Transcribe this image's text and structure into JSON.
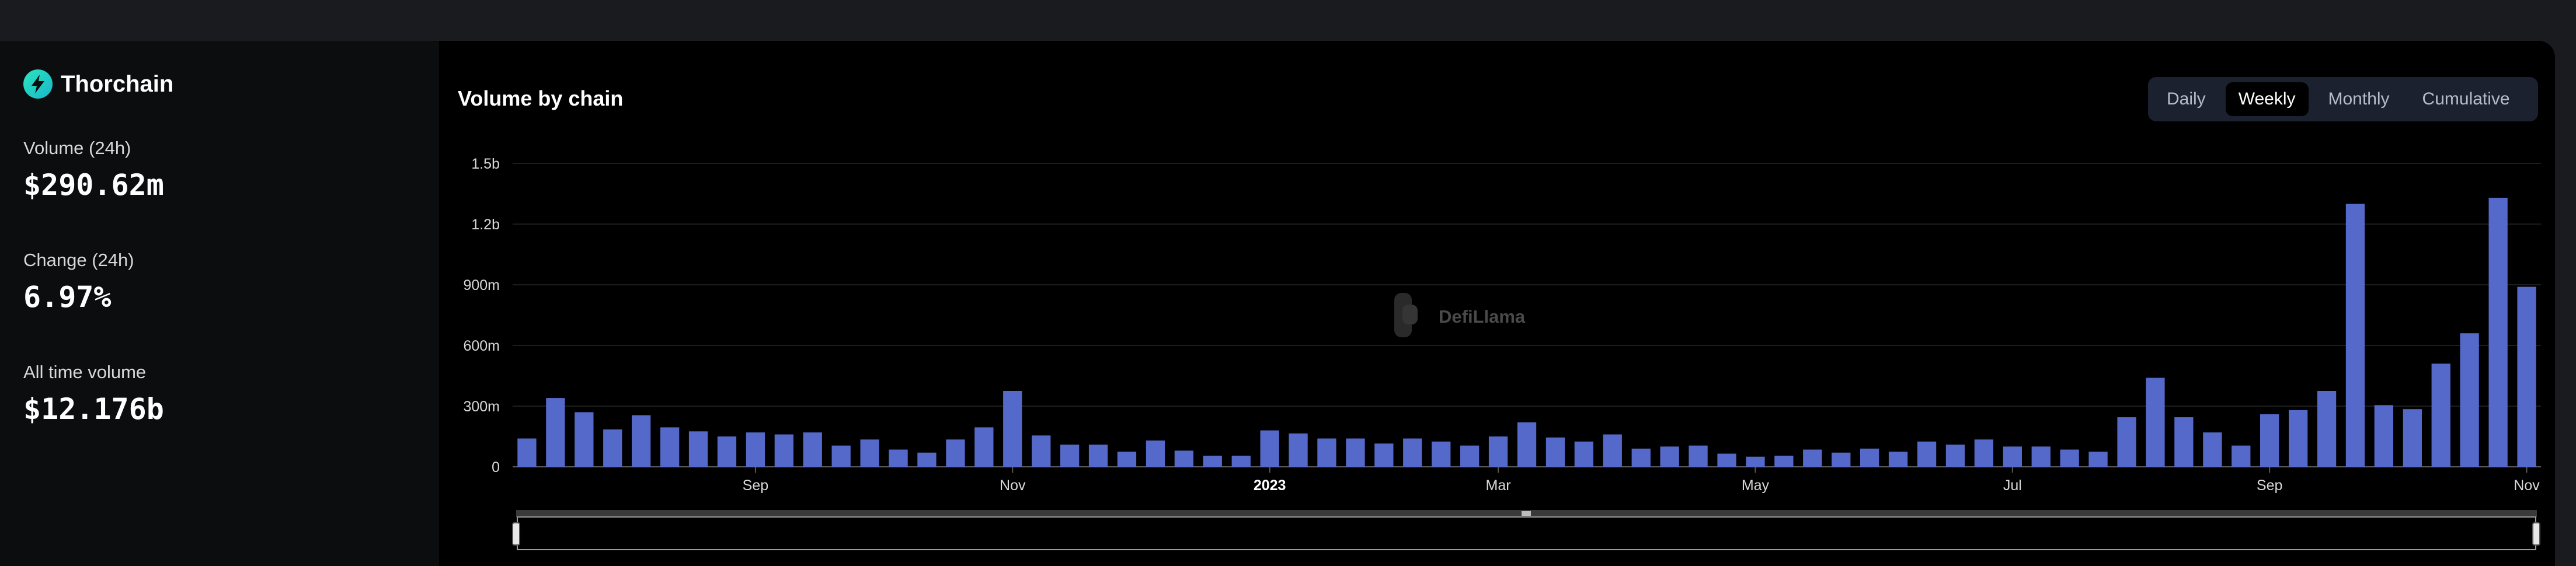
{
  "sidebar": {
    "protocol_name": "Thorchain",
    "stats": [
      {
        "label": "Volume (24h)",
        "value": "$290.62m"
      },
      {
        "label": "Change (24h)",
        "value": "6.97%"
      },
      {
        "label": "All time volume",
        "value": "$12.176b"
      }
    ]
  },
  "main": {
    "title": "Volume by chain",
    "tabs": [
      {
        "label": "Daily",
        "active": false
      },
      {
        "label": "Weekly",
        "active": true
      },
      {
        "label": "Monthly",
        "active": false
      },
      {
        "label": "Cumulative",
        "active": false
      }
    ]
  },
  "watermark": "DefiLlama",
  "colors": {
    "bar": "#5469c9",
    "accent": "#2ce5bf",
    "tabs_bg": "#1c2130"
  },
  "chart_data": {
    "type": "bar",
    "y_ticks": [
      "0",
      "300m",
      "600m",
      "900m",
      "1.2b",
      "1.5b"
    ],
    "ylim": [
      0,
      1500
    ],
    "y_unit": "millions USD",
    "x_ticks": [
      {
        "label": "Sep",
        "index": 8,
        "bold": false
      },
      {
        "label": "Nov",
        "index": 17,
        "bold": false
      },
      {
        "label": "2023",
        "index": 26,
        "bold": true
      },
      {
        "label": "Mar",
        "index": 34,
        "bold": false
      },
      {
        "label": "May",
        "index": 43,
        "bold": false
      },
      {
        "label": "Jul",
        "index": 52,
        "bold": false
      },
      {
        "label": "Sep",
        "index": 61,
        "bold": false
      },
      {
        "label": "Nov",
        "index": 70,
        "bold": false
      }
    ],
    "values": [
      140,
      340,
      270,
      185,
      255,
      195,
      175,
      150,
      170,
      160,
      170,
      105,
      135,
      85,
      70,
      135,
      195,
      375,
      155,
      110,
      110,
      75,
      130,
      80,
      55,
      55,
      180,
      165,
      140,
      140,
      115,
      140,
      125,
      105,
      150,
      220,
      145,
      125,
      160,
      90,
      100,
      105,
      65,
      50,
      55,
      85,
      70,
      90,
      75,
      125,
      110,
      135,
      100,
      100,
      85,
      75,
      245,
      440,
      245,
      170,
      105,
      260,
      280,
      375,
      1300,
      305,
      285,
      510,
      660,
      1330,
      890
    ]
  }
}
